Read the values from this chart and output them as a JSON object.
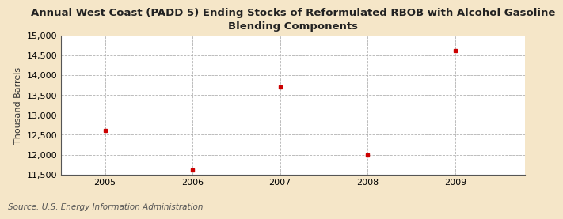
{
  "title": "Annual West Coast (PADD 5) Ending Stocks of Reformulated RBOB with Alcohol Gasoline\nBlending Components",
  "ylabel": "Thousand Barrels",
  "source": "Source: U.S. Energy Information Administration",
  "x_values": [
    2005,
    2006,
    2007,
    2008,
    2009
  ],
  "y_values": [
    12607,
    11619,
    13714,
    11996,
    14632
  ],
  "xlim": [
    2004.5,
    2009.8
  ],
  "ylim": [
    11500,
    15000
  ],
  "yticks": [
    11500,
    12000,
    12500,
    13000,
    13500,
    14000,
    14500,
    15000
  ],
  "xticks": [
    2005,
    2006,
    2007,
    2008,
    2009
  ],
  "fig_bg_color": "#f5e6c8",
  "plot_bg_color": "#ffffff",
  "marker_color": "#cc0000",
  "grid_color": "#aaaaaa",
  "spine_color": "#555555",
  "title_fontsize": 9.5,
  "title_fontweight": "bold",
  "label_fontsize": 8,
  "tick_fontsize": 8,
  "source_fontsize": 7.5
}
